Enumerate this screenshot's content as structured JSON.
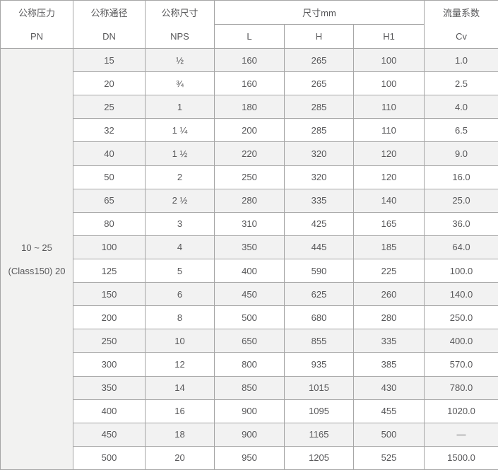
{
  "table": {
    "header": {
      "pressure": {
        "zh": "公称压力",
        "en": "PN"
      },
      "diameter": {
        "zh": "公称通径",
        "en": "DN"
      },
      "size": {
        "zh": "公称尺寸",
        "en": "NPS"
      },
      "dims_group": "尺寸mm",
      "dims_sub": {
        "l": "L",
        "h": "H",
        "h1": "H1"
      },
      "flow": {
        "zh": "流量系数",
        "en": "Cv"
      }
    },
    "pn_cell": {
      "line1": "10 ~ 25",
      "line2": "(Class150) 20"
    },
    "rows": [
      {
        "dn": "15",
        "nps": "½",
        "l": "160",
        "h": "265",
        "h1": "100",
        "cv": "1.0"
      },
      {
        "dn": "20",
        "nps": "¾",
        "l": "160",
        "h": "265",
        "h1": "100",
        "cv": "2.5"
      },
      {
        "dn": "25",
        "nps": "1",
        "l": "180",
        "h": "285",
        "h1": "110",
        "cv": "4.0"
      },
      {
        "dn": "32",
        "nps": "1 ¼",
        "l": "200",
        "h": "285",
        "h1": "110",
        "cv": "6.5"
      },
      {
        "dn": "40",
        "nps": "1 ½",
        "l": "220",
        "h": "320",
        "h1": "120",
        "cv": "9.0"
      },
      {
        "dn": "50",
        "nps": "2",
        "l": "250",
        "h": "320",
        "h1": "120",
        "cv": "16.0"
      },
      {
        "dn": "65",
        "nps": "2 ½",
        "l": "280",
        "h": "335",
        "h1": "140",
        "cv": "25.0"
      },
      {
        "dn": "80",
        "nps": "3",
        "l": "310",
        "h": "425",
        "h1": "165",
        "cv": "36.0"
      },
      {
        "dn": "100",
        "nps": "4",
        "l": "350",
        "h": "445",
        "h1": "185",
        "cv": "64.0"
      },
      {
        "dn": "125",
        "nps": "5",
        "l": "400",
        "h": "590",
        "h1": "225",
        "cv": "100.0"
      },
      {
        "dn": "150",
        "nps": "6",
        "l": "450",
        "h": "625",
        "h1": "260",
        "cv": "140.0"
      },
      {
        "dn": "200",
        "nps": "8",
        "l": "500",
        "h": "680",
        "h1": "280",
        "cv": "250.0"
      },
      {
        "dn": "250",
        "nps": "10",
        "l": "650",
        "h": "855",
        "h1": "335",
        "cv": "400.0"
      },
      {
        "dn": "300",
        "nps": "12",
        "l": "800",
        "h": "935",
        "h1": "385",
        "cv": "570.0"
      },
      {
        "dn": "350",
        "nps": "14",
        "l": "850",
        "h": "1015",
        "h1": "430",
        "cv": "780.0"
      },
      {
        "dn": "400",
        "nps": "16",
        "l": "900",
        "h": "1095",
        "h1": "455",
        "cv": "1020.0"
      },
      {
        "dn": "450",
        "nps": "18",
        "l": "900",
        "h": "1165",
        "h1": "500",
        "cv": "—"
      },
      {
        "dn": "500",
        "nps": "20",
        "l": "950",
        "h": "1205",
        "h1": "525",
        "cv": "1500.0"
      }
    ]
  },
  "colors": {
    "border": "#a6a6a6",
    "stripe_row_bg": "#f2f2f2",
    "pn_cell_bg": "#f2f2f1",
    "text": "#58585a",
    "white_row_bg": "#ffffff"
  }
}
